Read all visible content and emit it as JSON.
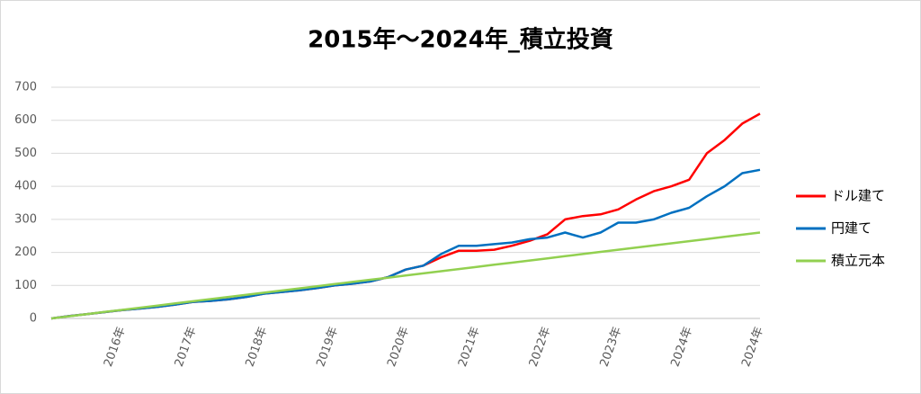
{
  "chart_data": {
    "type": "line",
    "title": "2015年～2024年_積立投資",
    "categories": [
      null,
      null,
      null,
      null,
      "2016年",
      null,
      null,
      null,
      "2017年",
      null,
      null,
      null,
      "2018年",
      null,
      null,
      null,
      "2019年",
      null,
      null,
      null,
      "2020年",
      null,
      null,
      null,
      "2021年",
      null,
      null,
      null,
      "2022年",
      null,
      null,
      null,
      "2023年",
      null,
      null,
      null,
      "2024年",
      null,
      null,
      null,
      "2024年"
    ],
    "series": [
      {
        "name": "ドル建て",
        "color": "#ff0000",
        "values": [
          0,
          7,
          13,
          19,
          25,
          30,
          35,
          42,
          50,
          53,
          58,
          65,
          75,
          80,
          85,
          92,
          100,
          105,
          112,
          125,
          148,
          160,
          185,
          205,
          205,
          208,
          220,
          235,
          255,
          300,
          310,
          315,
          330,
          360,
          385,
          400,
          420,
          500,
          540,
          590,
          620
        ]
      },
      {
        "name": "円建て",
        "color": "#0070c0",
        "values": [
          0,
          7,
          13,
          19,
          25,
          30,
          35,
          42,
          50,
          53,
          58,
          65,
          75,
          80,
          85,
          92,
          100,
          105,
          112,
          125,
          148,
          160,
          195,
          220,
          220,
          225,
          230,
          240,
          245,
          260,
          245,
          260,
          290,
          290,
          300,
          320,
          335,
          370,
          400,
          440,
          450
        ]
      },
      {
        "name": "積立元本",
        "color": "#92d050",
        "values": [
          0,
          6.5,
          13,
          19.5,
          26,
          32.5,
          39,
          45.5,
          52,
          58.5,
          65,
          71.5,
          78,
          84.5,
          91,
          97.5,
          104,
          110.5,
          117,
          123.5,
          130,
          136.5,
          143,
          149.5,
          156,
          162.5,
          169,
          175.5,
          182,
          188.5,
          195,
          201.5,
          208,
          214.5,
          221,
          227.5,
          234,
          240.5,
          247,
          253.5,
          260
        ]
      }
    ],
    "ylim": [
      0,
      700
    ],
    "yticks": [
      0,
      100,
      200,
      300,
      400,
      500,
      600,
      700
    ],
    "grid": true,
    "legend": "right"
  }
}
